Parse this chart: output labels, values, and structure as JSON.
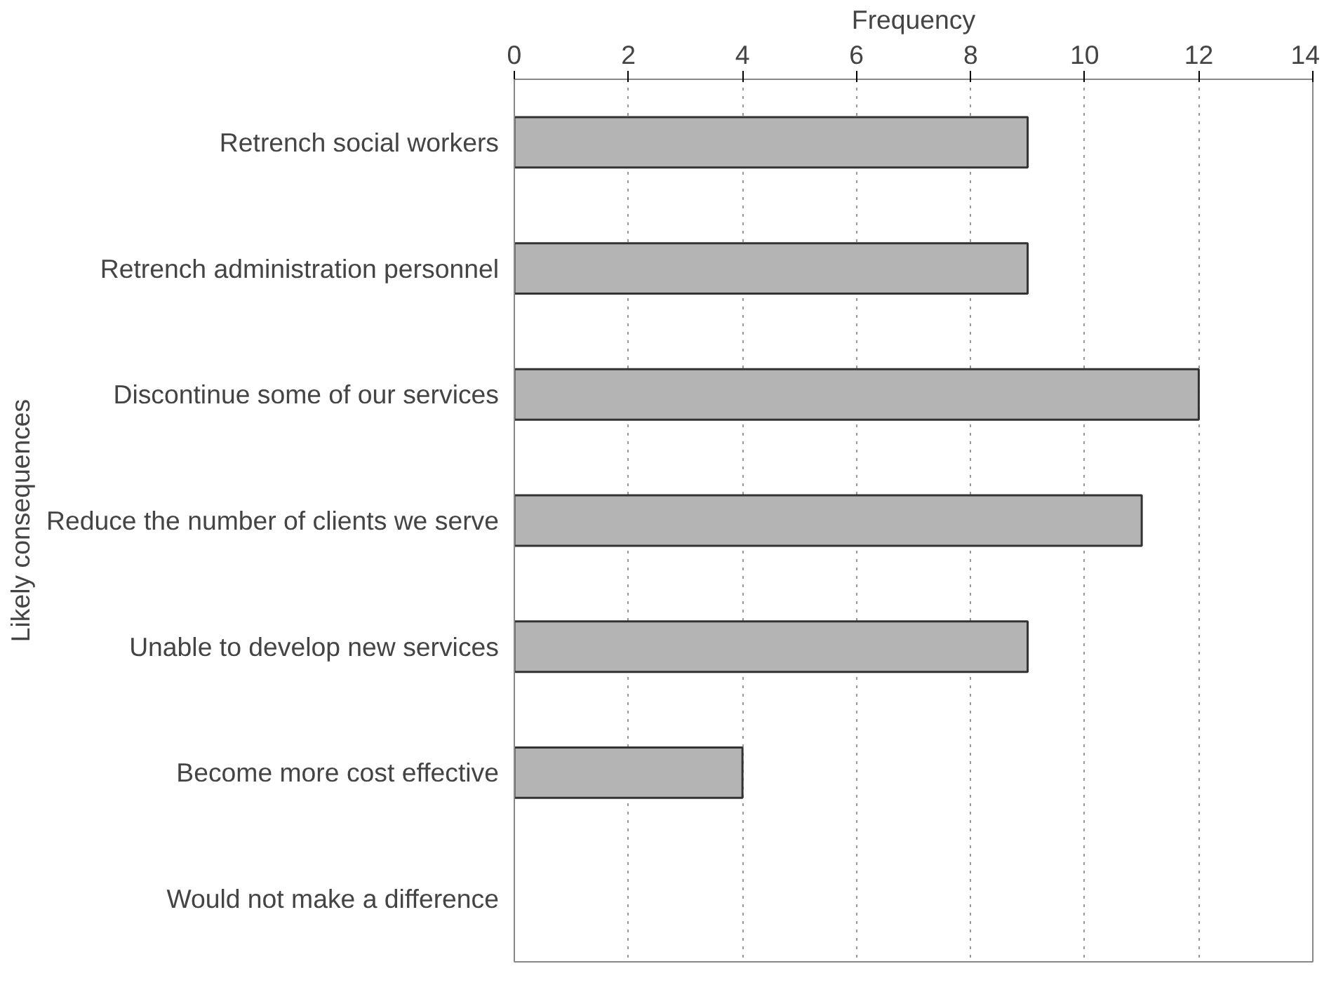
{
  "chart_data": {
    "type": "bar",
    "orientation": "horizontal",
    "xlabel": "Frequency",
    "ylabel": "Likely consequences",
    "categories": [
      "Retrench social workers",
      "Retrench administration personnel",
      "Discontinue some of our services",
      "Reduce the number of clients we serve",
      "Unable to develop new services",
      "Become more cost effective",
      "Would not make a difference"
    ],
    "values": [
      9,
      9,
      12,
      11,
      9,
      4,
      0
    ],
    "color": "#b4b4b4",
    "xlim": [
      0,
      14
    ],
    "xticks": [
      0,
      2,
      4,
      6,
      8,
      10,
      12,
      14
    ],
    "grid": "x"
  }
}
